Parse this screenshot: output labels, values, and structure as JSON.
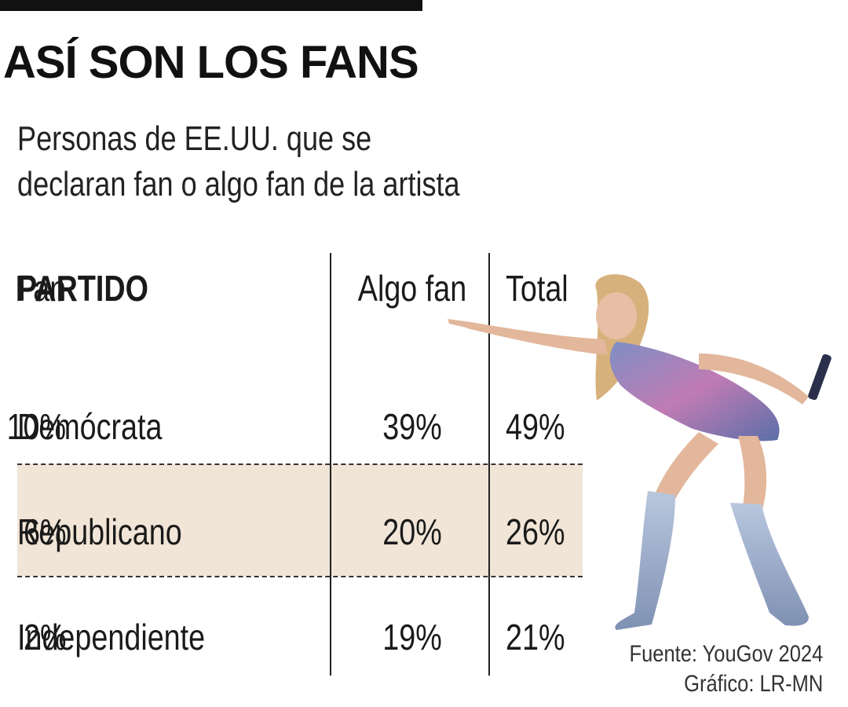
{
  "title": "ASÍ SON LOS FANS",
  "subtitle_line1": "Personas de EE.UU. que se",
  "subtitle_line2": "declaran fan o algo fan de la artista",
  "source": "Fuente: YouGov 2024",
  "credit": "Gráfico: LR-MN",
  "colors": {
    "highlight_row": "#f1e5d7",
    "text": "#1a1a1a"
  },
  "chart_data": {
    "type": "table",
    "columns": [
      "PARTIDO",
      "Fan",
      "Algo fan",
      "Total"
    ],
    "rows": [
      {
        "party": "Demócrata",
        "fan": "10%",
        "algo_fan": "39%",
        "total": "49%"
      },
      {
        "party": "Republicano",
        "fan": "6%",
        "algo_fan": "20%",
        "total": "26%"
      },
      {
        "party": "Independiente",
        "fan": "2%",
        "algo_fan": "19%",
        "total": "21%"
      }
    ]
  }
}
